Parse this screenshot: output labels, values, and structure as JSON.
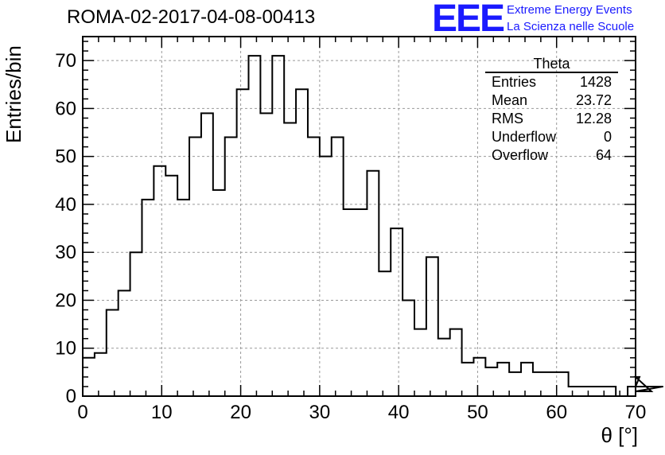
{
  "header": {
    "run_title": "ROMA-02-2017-04-08-00413",
    "logo_text": "EEE",
    "logo_line1": "Extreme Energy Events",
    "logo_line2": "La Scienza nelle Scuole"
  },
  "stats": {
    "name": "Theta",
    "rows": [
      {
        "label": "Entries",
        "value": "1428"
      },
      {
        "label": "Mean",
        "value": "23.72"
      },
      {
        "label": "RMS",
        "value": "12.28"
      },
      {
        "label": "Underflow",
        "value": "0"
      },
      {
        "label": "Overflow",
        "value": "64"
      }
    ]
  },
  "colors": {
    "histogram_line": "#000000",
    "grid": "#999999",
    "logo": "#1a1aff"
  },
  "chart_data": {
    "type": "histogram",
    "title": "ROMA-02-2017-04-08-00413",
    "xlabel": "θ [°]",
    "ylabel": "Entries/bin",
    "xlim": [
      0,
      70
    ],
    "ylim": [
      0,
      75
    ],
    "x_ticks": [
      0,
      10,
      20,
      30,
      40,
      50,
      60,
      70
    ],
    "y_ticks": [
      0,
      10,
      20,
      30,
      40,
      50,
      60,
      70
    ],
    "grid": true,
    "bin_edges_start": 0,
    "bin_width": 1.5,
    "values": [
      8,
      9,
      18,
      22,
      30,
      41,
      48,
      46,
      41,
      54,
      59,
      43,
      54,
      64,
      71,
      59,
      71,
      57,
      64,
      54,
      50,
      54,
      39,
      39,
      47,
      26,
      35,
      20,
      14,
      29,
      12,
      14,
      7,
      8,
      6,
      7,
      5,
      7,
      5,
      5,
      5,
      2,
      2,
      2,
      2,
      0,
      2,
      4,
      1,
      2
    ]
  }
}
